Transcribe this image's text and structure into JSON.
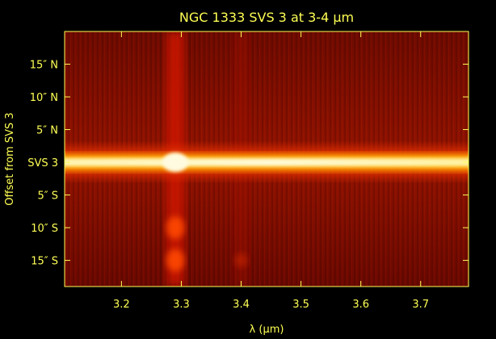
{
  "chart_data": {
    "type": "heatmap",
    "title": "NGC 1333 SVS 3 at 3-4 μm",
    "xlabel": "λ (μm)",
    "ylabel": "Offset from SVS 3",
    "xlim": [
      3.105,
      3.78
    ],
    "ylim": [
      -19,
      20
    ],
    "xticks": [
      {
        "value": 3.2,
        "label": "3.2"
      },
      {
        "value": 3.3,
        "label": "3.3"
      },
      {
        "value": 3.4,
        "label": "3.4"
      },
      {
        "value": 3.5,
        "label": "3.5"
      },
      {
        "value": 3.6,
        "label": "3.6"
      },
      {
        "value": 3.7,
        "label": "3.7"
      }
    ],
    "yticks": [
      {
        "value": 15,
        "label": "15″ N"
      },
      {
        "value": 10,
        "label": "10″ N"
      },
      {
        "value": 5,
        "label": "5″ N"
      },
      {
        "value": 0,
        "label": "SVS 3"
      },
      {
        "value": -5,
        "label": "5″ S"
      },
      {
        "value": -10,
        "label": "10″ S"
      },
      {
        "value": -15,
        "label": "15″ S"
      }
    ],
    "colormap": [
      "#3a0000",
      "#7a0000",
      "#c01000",
      "#e83000",
      "#ff7a00",
      "#ffd000",
      "#fffbd0"
    ],
    "continuum_row_offset": 0,
    "emission_features": [
      {
        "wavelength": 3.29,
        "offsets": [
          -10,
          -15
        ]
      },
      {
        "wavelength": 3.4,
        "offsets": [
          -15
        ]
      }
    ],
    "colors": {
      "axes": "#ffff55",
      "background": "#000000"
    }
  }
}
